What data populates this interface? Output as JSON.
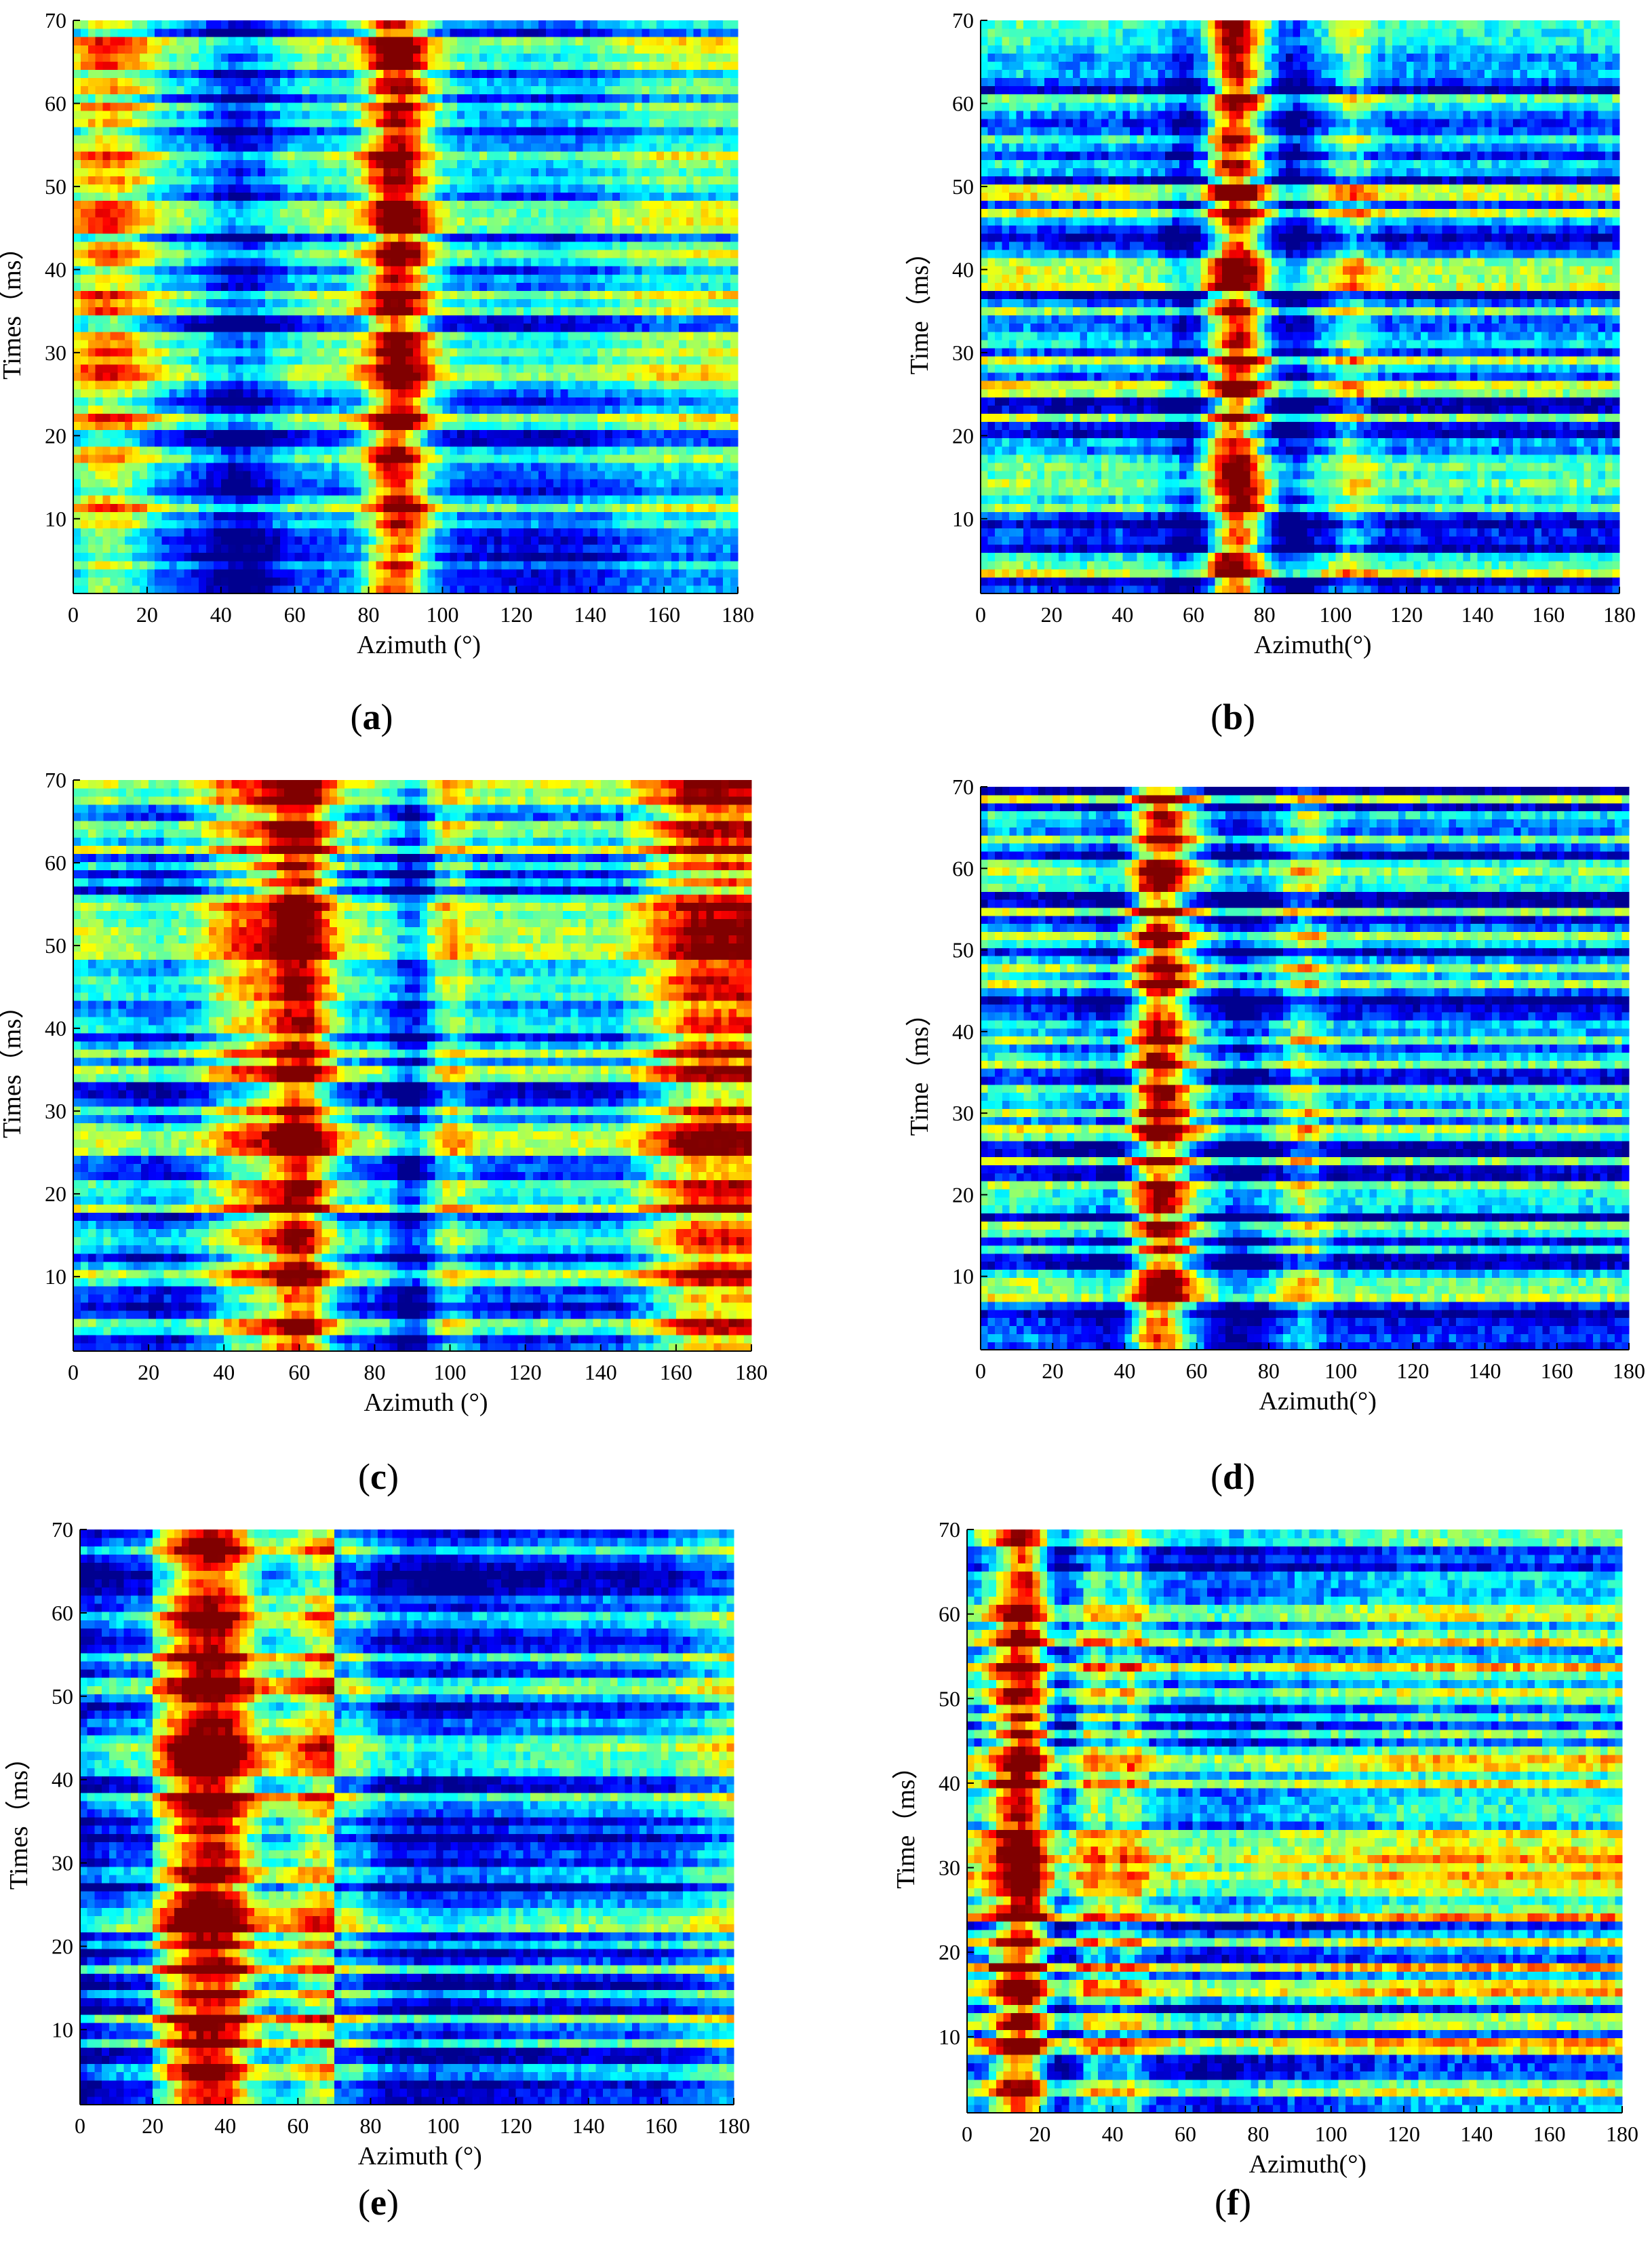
{
  "figure": {
    "colormap": [
      "#00008f",
      "#0000ff",
      "#0080ff",
      "#00ffff",
      "#80ff80",
      "#ffff00",
      "#ff8000",
      "#ff0000",
      "#800000"
    ],
    "caption_font_note": "bold letters in parentheses"
  },
  "chart_data": [
    {
      "id": "a",
      "type": "heatmap",
      "caption": "(a)",
      "caption_letter": "a",
      "xlabel": "Azimuth (°)",
      "ylabel": "Times（ms）",
      "xlim": [
        0,
        180
      ],
      "ylim": [
        1,
        70
      ],
      "xticks": [
        0,
        20,
        40,
        60,
        80,
        100,
        120,
        140,
        160,
        180
      ],
      "yticks": [
        10,
        20,
        30,
        40,
        50,
        60,
        70
      ],
      "rows": 70,
      "cols": 90,
      "seed": 11,
      "profile": {
        "base": 0.36,
        "left_warm": [
          0,
          30,
          0.3
        ],
        "peaks": [
          [
            88,
            6,
            0.62,
            0.08
          ]
        ],
        "cool": [
          [
            45,
            8,
            0.26
          ],
          [
            125,
            20,
            0.1
          ]
        ],
        "right_level": 0.42,
        "noise": 0.24
      }
    },
    {
      "id": "b",
      "type": "heatmap",
      "caption": "(b)",
      "caption_letter": "b",
      "xlabel": "Azimuth(°)",
      "ylabel": "Time（ms）",
      "xlim": [
        0,
        180
      ],
      "ylim": [
        1,
        70
      ],
      "xticks": [
        0,
        20,
        40,
        60,
        80,
        100,
        120,
        140,
        160,
        180
      ],
      "yticks": [
        10,
        20,
        30,
        40,
        50,
        60,
        70
      ],
      "rows": 70,
      "cols": 90,
      "seed": 23,
      "profile": {
        "base": 0.3,
        "left_warm": [
          0,
          40,
          0.06
        ],
        "peaks": [
          [
            72,
            5,
            0.66,
            0.06
          ],
          [
            105,
            4,
            0.2,
            0.04
          ]
        ],
        "cool": [
          [
            58,
            4,
            0.18
          ],
          [
            88,
            4,
            0.2
          ]
        ],
        "right_level": 0.3,
        "noise": 0.3
      }
    },
    {
      "id": "c",
      "type": "heatmap",
      "caption": "(c)",
      "caption_letter": "c",
      "xlabel": "Azimuth (°)",
      "ylabel": "Times（ms）",
      "xlim": [
        0,
        180
      ],
      "ylim": [
        1,
        70
      ],
      "xticks": [
        0,
        20,
        40,
        60,
        80,
        100,
        120,
        140,
        160,
        180
      ],
      "yticks": [
        10,
        20,
        30,
        40,
        50,
        60,
        70
      ],
      "rows": 70,
      "cols": 90,
      "seed": 37,
      "profile": {
        "base": 0.34,
        "left_warm": [
          0,
          20,
          0.04
        ],
        "peaks": [
          [
            60,
            6,
            0.62,
            0.05
          ],
          [
            45,
            7,
            0.26,
            0.05
          ],
          [
            100,
            4,
            0.18,
            0.04
          ]
        ],
        "cool": [
          [
            90,
            4,
            0.24
          ],
          [
            20,
            10,
            0.08
          ]
        ],
        "right_level": 0.82,
        "right_start": 145,
        "noise": 0.26
      }
    },
    {
      "id": "d",
      "type": "heatmap",
      "caption": "(d)",
      "caption_letter": "d",
      "xlabel": "Azimuth(°)",
      "ylabel": "Time（ms）",
      "xlim": [
        0,
        180
      ],
      "ylim": [
        1,
        70
      ],
      "xticks": [
        0,
        20,
        40,
        60,
        80,
        100,
        120,
        140,
        160,
        180
      ],
      "yticks": [
        10,
        20,
        30,
        40,
        50,
        60,
        70
      ],
      "rows": 70,
      "cols": 90,
      "seed": 41,
      "profile": {
        "base": 0.28,
        "left_warm": [
          0,
          30,
          0.08
        ],
        "peaks": [
          [
            50,
            6,
            0.66,
            0.05
          ],
          [
            90,
            4,
            0.22,
            0.04
          ]
        ],
        "cool": [
          [
            38,
            4,
            0.14
          ],
          [
            72,
            5,
            0.16
          ]
        ],
        "right_level": 0.28,
        "noise": 0.3
      }
    },
    {
      "id": "e",
      "type": "heatmap",
      "caption": "(e)",
      "caption_letter": "e",
      "xlabel": "Azimuth (°)",
      "ylabel": "Times（ms）",
      "xlim": [
        0,
        180
      ],
      "ylim": [
        1,
        70
      ],
      "xticks": [
        0,
        20,
        40,
        60,
        80,
        100,
        120,
        140,
        160,
        180
      ],
      "yticks": [
        10,
        20,
        30,
        40,
        50,
        60,
        70
      ],
      "rows": 70,
      "cols": 90,
      "seed": 53,
      "profile": {
        "base": 0.28,
        "left_warm": [
          20,
          70,
          0.4
        ],
        "peaks": [
          [
            40,
            8,
            0.55,
            0.05
          ],
          [
            75,
            4,
            0.14,
            0.04
          ]
        ],
        "cool": [
          [
            100,
            15,
            0.1
          ],
          [
            0,
            6,
            0.1
          ]
        ],
        "right_level": 0.46,
        "right_start": 160,
        "noise": 0.26
      }
    },
    {
      "id": "f",
      "type": "heatmap",
      "caption": "(f)",
      "caption_letter": "f",
      "xlabel": "Azimuth(°)",
      "ylabel": "Time（ms）",
      "xlim": [
        0,
        180
      ],
      "ylim": [
        1,
        70
      ],
      "xticks": [
        0,
        20,
        40,
        60,
        80,
        100,
        120,
        140,
        160,
        180
      ],
      "yticks": [
        10,
        20,
        30,
        40,
        50,
        60,
        70
      ],
      "rows": 70,
      "cols": 90,
      "seed": 67,
      "profile": {
        "base": 0.36,
        "left_warm": [
          0,
          10,
          0.06
        ],
        "peaks": [
          [
            15,
            5,
            0.64,
            0.05
          ],
          [
            35,
            3,
            0.22,
            0.04
          ],
          [
            45,
            3,
            0.22,
            0.04
          ]
        ],
        "cool": [
          [
            25,
            3,
            0.16
          ],
          [
            70,
            10,
            0.08
          ]
        ],
        "right_level": 0.44,
        "right_start": 100,
        "noise": 0.32
      }
    }
  ]
}
